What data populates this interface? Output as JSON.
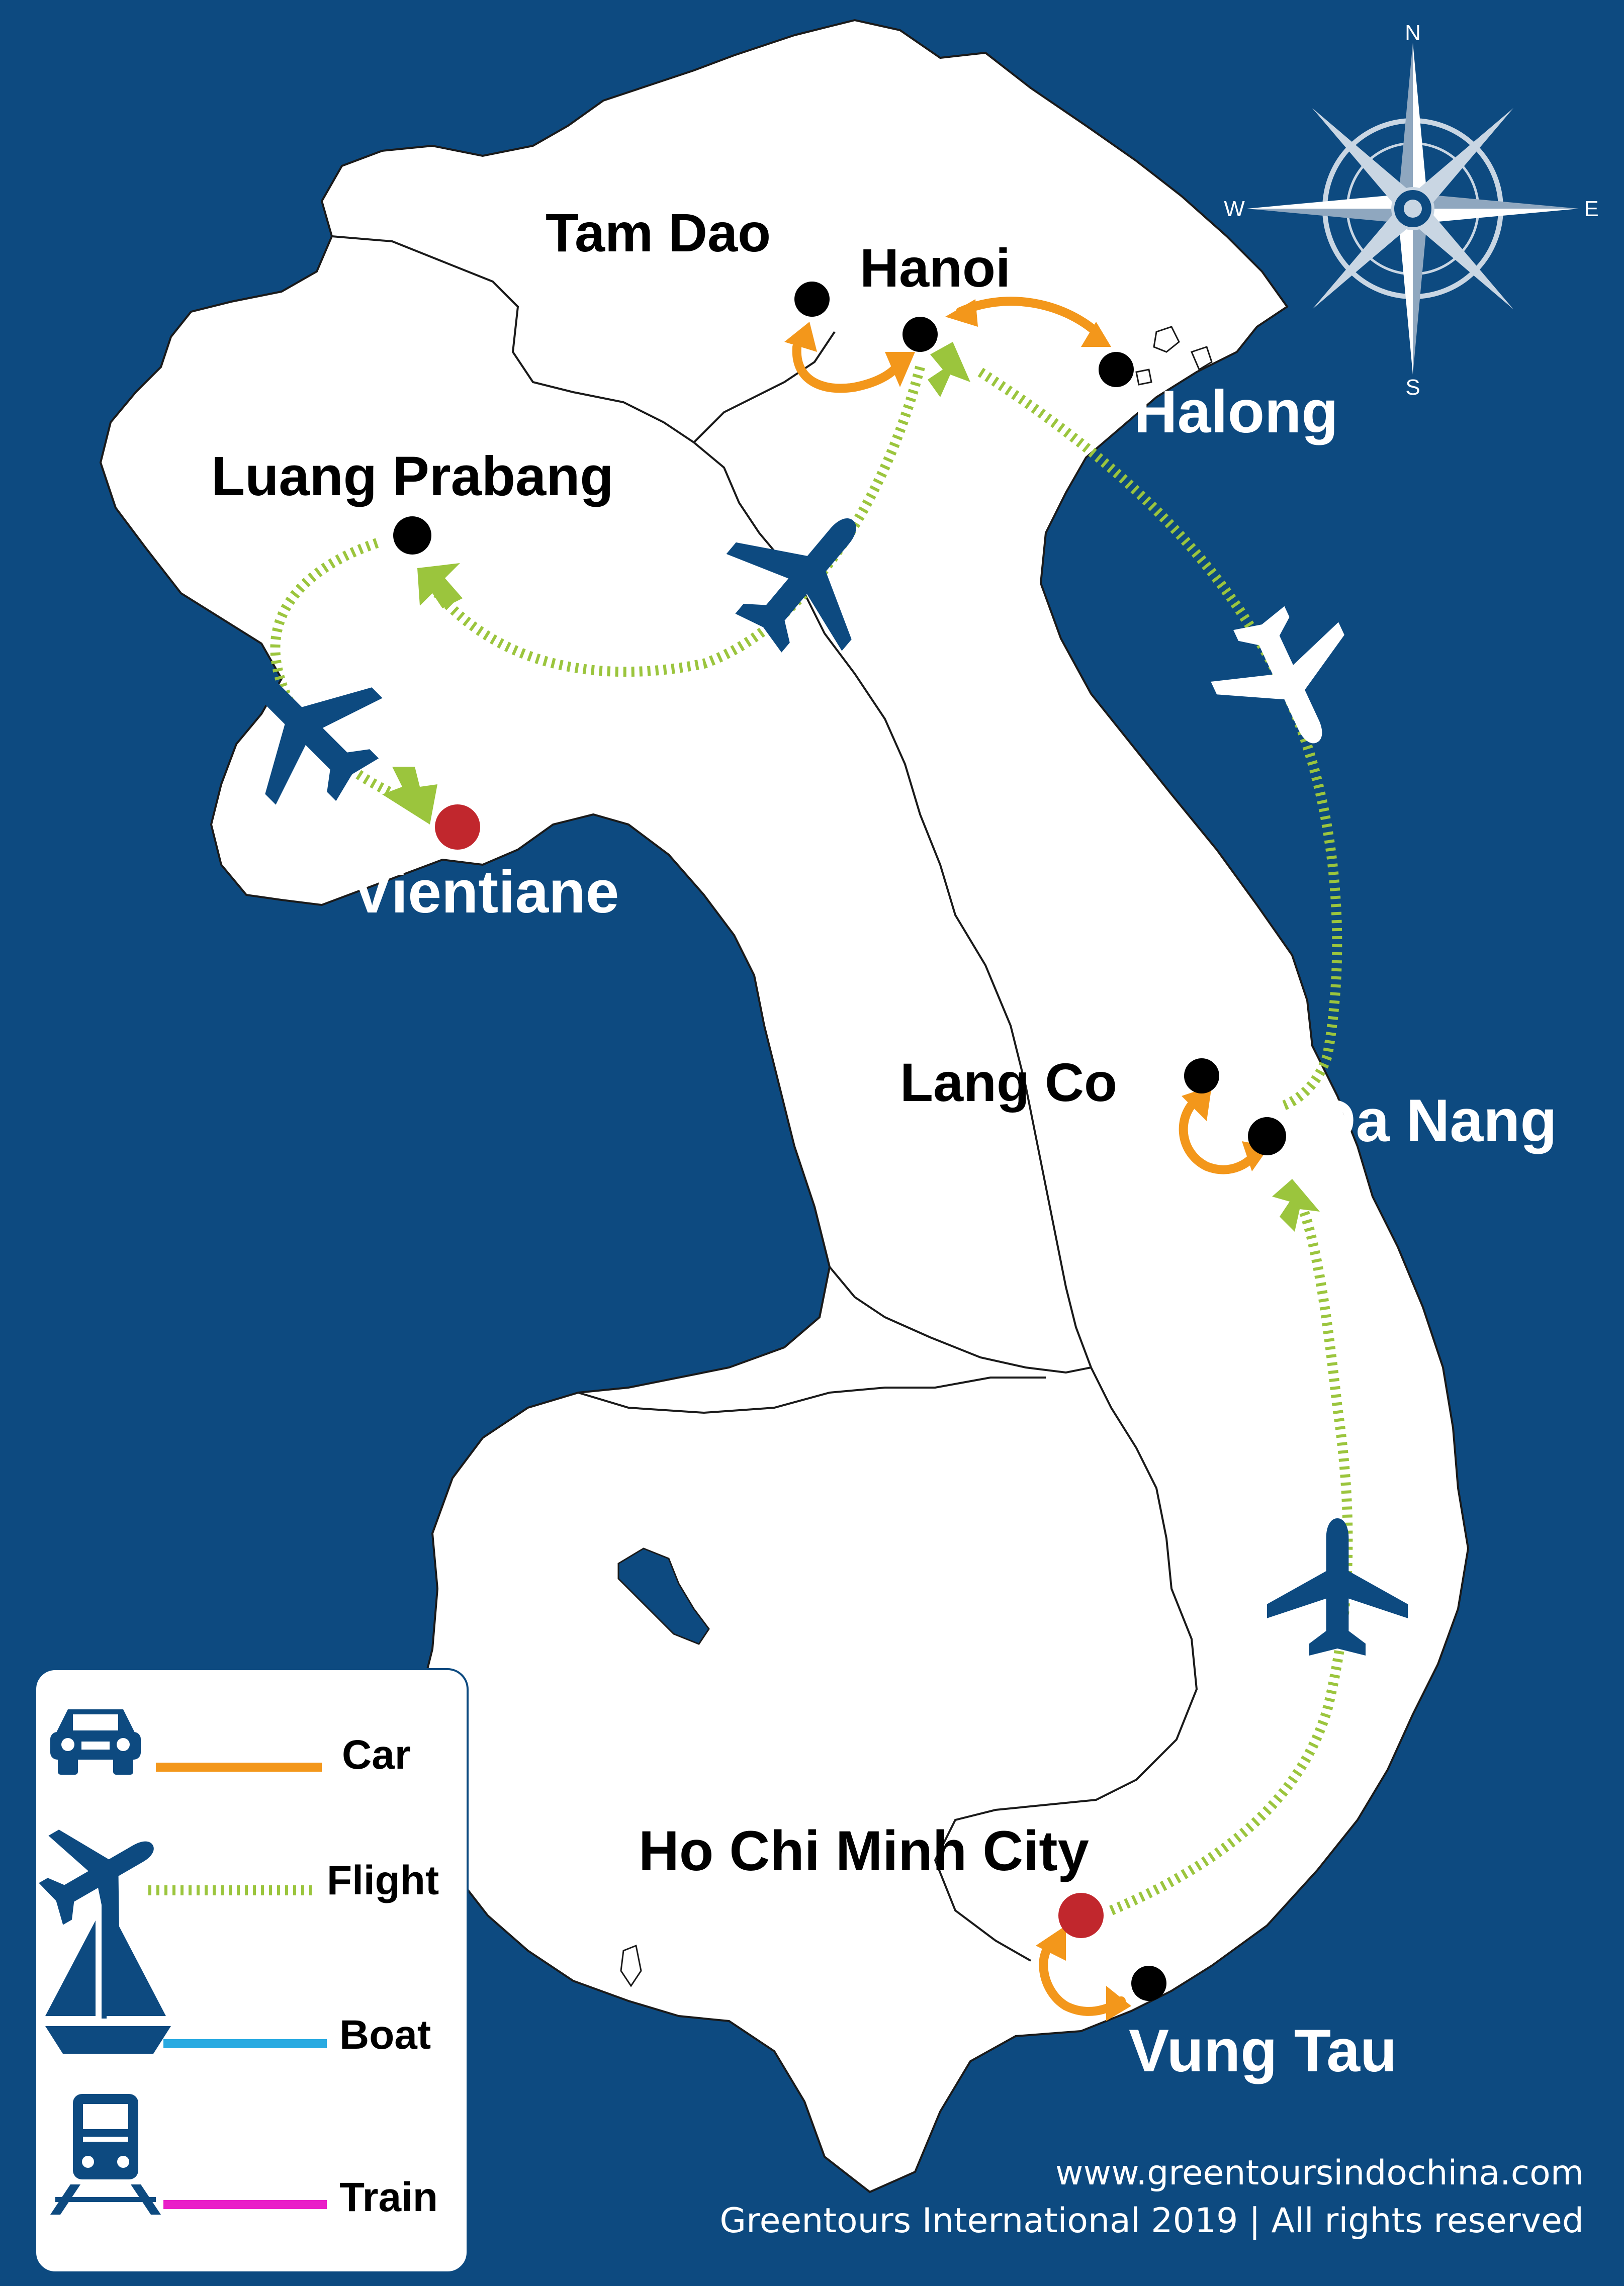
{
  "colors": {
    "sea": "#0d4a80",
    "land": "#ffffff",
    "border": "#222222",
    "car": "#f3971b",
    "flight": "#9bc53d",
    "boat": "#29aae1",
    "train": "#e91ec8",
    "city_marker": "#000000",
    "capital_marker": "#c1272d",
    "icon_blue": "#0d4a80"
  },
  "compass": {
    "north": "N",
    "south": "S",
    "east": "E",
    "west": "W"
  },
  "cities": {
    "tam_dao": "Tam Dao",
    "hanoi": "Hanoi",
    "halong": "Halong",
    "luang_prabang": "Luang Prabang",
    "vientiane": "Vientiane",
    "lang_co": "Lang Co",
    "da_nang": "Da Nang",
    "ho_chi_minh_city": "Ho Chi Minh City",
    "vung_tau": "Vung Tau"
  },
  "legend": {
    "items": [
      {
        "label": "Car",
        "icon": "car-icon",
        "line_style": "solid",
        "color": "#f3971b"
      },
      {
        "label": "Flight",
        "icon": "airplane-icon",
        "line_style": "dotted",
        "color": "#9bc53d"
      },
      {
        "label": "Boat",
        "icon": "sailboat-icon",
        "line_style": "solid",
        "color": "#29aae1"
      },
      {
        "label": "Train",
        "icon": "train-icon",
        "line_style": "solid",
        "color": "#e91ec8"
      }
    ]
  },
  "footer": {
    "website": "www.greentoursindochina.com",
    "copyright": "Greentours International 2019 | All rights reserved"
  }
}
